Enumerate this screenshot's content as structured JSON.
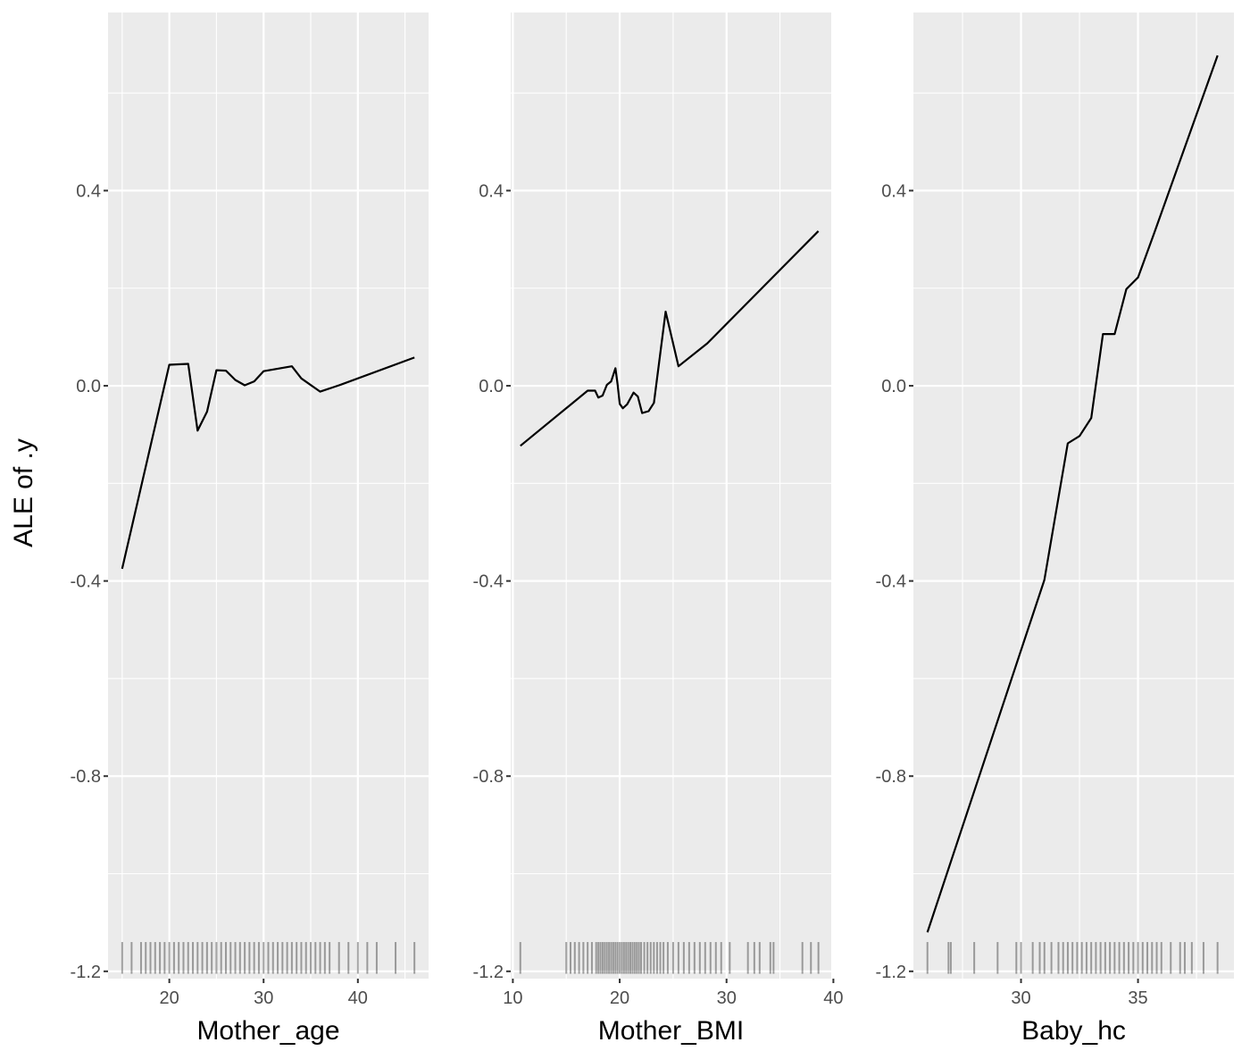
{
  "chart_data": {
    "type": "line",
    "ylabel": "ALE of .y",
    "ylim": [
      -1.215,
      0.765
    ],
    "y_ticks": [
      0.4,
      0.0,
      -0.4,
      -0.8,
      -1.2
    ],
    "y_tick_labels": [
      "0.4",
      "0.0",
      "-0.4",
      "-0.8",
      "-1.2"
    ],
    "grid": true,
    "panel_background": "#ebebeb",
    "grid_color": "#ffffff",
    "line_color": "#000000",
    "rug_color": "#000000",
    "panels": [
      {
        "xlabel": "Mother_age",
        "xlim": [
          13.5,
          47.5
        ],
        "x_ticks": [
          20,
          30,
          40
        ],
        "x_tick_labels": [
          "20",
          "30",
          "40"
        ],
        "x": [
          15.0,
          20.0,
          22.0,
          23.0,
          24.0,
          25.0,
          26.0,
          27.0,
          28.0,
          29.0,
          30.0,
          33.0,
          34.0,
          36.0,
          38.0,
          46.0
        ],
        "y": [
          -0.375,
          0.043,
          0.045,
          -0.092,
          -0.053,
          0.032,
          0.031,
          0.012,
          0.001,
          0.009,
          0.03,
          0.04,
          0.015,
          -0.012,
          0.001,
          0.058
        ],
        "rug": [
          15,
          16,
          17,
          17.5,
          18,
          18.5,
          19,
          19.5,
          20,
          20.5,
          21,
          21.5,
          22,
          22.5,
          23,
          23.5,
          24,
          24.5,
          25,
          25.5,
          26,
          26.5,
          27,
          27.5,
          28,
          28.5,
          29,
          29.5,
          30,
          30.5,
          31,
          31.5,
          32,
          32.5,
          33,
          33.5,
          34,
          34.5,
          35,
          35.5,
          36,
          36.5,
          37,
          38,
          39,
          40,
          41,
          42,
          44,
          46
        ]
      },
      {
        "xlabel": "Mother_BMI",
        "xlim": [
          9.8,
          39.8
        ],
        "x_ticks": [
          10,
          20,
          30,
          40
        ],
        "x_tick_labels": [
          "10",
          "20",
          "30",
          "40"
        ],
        "x": [
          10.7,
          17.0,
          17.7,
          18.0,
          18.4,
          18.8,
          19.2,
          19.6,
          19.8,
          20.0,
          20.3,
          20.7,
          21.3,
          21.7,
          22.1,
          22.7,
          23.2,
          24.3,
          25.5,
          28.2,
          38.6
        ],
        "y": [
          -0.123,
          -0.01,
          -0.01,
          -0.024,
          -0.02,
          0.002,
          0.009,
          0.036,
          0.003,
          -0.037,
          -0.046,
          -0.038,
          -0.014,
          -0.022,
          -0.056,
          -0.052,
          -0.035,
          0.152,
          0.04,
          0.087,
          0.317
        ],
        "rug": [
          10.7,
          15.0,
          15.4,
          15.8,
          16.2,
          16.6,
          17.0,
          17.4,
          17.8,
          18.0,
          18.2,
          18.4,
          18.6,
          18.8,
          19.0,
          19.2,
          19.4,
          19.6,
          19.8,
          20.0,
          20.2,
          20.4,
          20.6,
          20.8,
          21.0,
          21.2,
          21.4,
          21.6,
          21.8,
          22.0,
          22.3,
          22.6,
          22.9,
          23.2,
          23.5,
          23.8,
          24.1,
          24.5,
          25.0,
          25.5,
          26.0,
          26.5,
          27.0,
          27.5,
          28.0,
          28.5,
          29.0,
          29.5,
          30.3,
          32.0,
          32.6,
          33.1,
          34.1,
          34.4,
          37.1,
          37.9,
          38.6
        ]
      },
      {
        "xlabel": "Baby_hc",
        "xlim": [
          25.4,
          39.1
        ],
        "x_ticks": [
          30,
          35
        ],
        "x_tick_labels": [
          "30",
          "35"
        ],
        "x": [
          26.0,
          31.0,
          32.0,
          32.5,
          33.0,
          33.5,
          34.0,
          34.5,
          35.0,
          35.7,
          38.4
        ],
        "y": [
          -1.12,
          -0.398,
          -0.118,
          -0.103,
          -0.066,
          0.106,
          0.106,
          0.198,
          0.222,
          0.314,
          0.677
        ],
        "rug": [
          26.0,
          26.9,
          27.0,
          28.0,
          29.0,
          29.8,
          30.0,
          30.5,
          30.8,
          31.0,
          31.3,
          31.6,
          31.8,
          32.0,
          32.2,
          32.4,
          32.6,
          32.8,
          33.0,
          33.2,
          33.4,
          33.6,
          33.8,
          34.0,
          34.2,
          34.4,
          34.6,
          34.8,
          35.0,
          35.2,
          35.4,
          35.6,
          35.8,
          36.0,
          36.4,
          36.8,
          37.0,
          37.3,
          37.8,
          38.4
        ]
      }
    ]
  }
}
